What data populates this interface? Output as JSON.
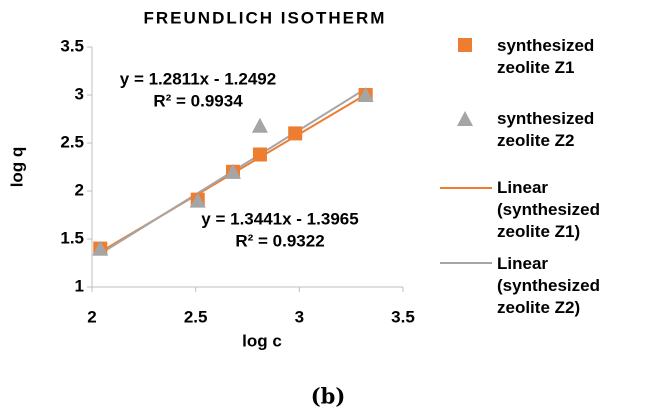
{
  "chart_data": {
    "type": "scatter",
    "title": "FREUNDLICH ISOTHERM",
    "x_label": "log c",
    "y_label": "log q",
    "xlim": [
      2,
      3.5
    ],
    "xticks": [
      2,
      2.5,
      3,
      3.5
    ],
    "ylim": [
      1,
      3.5
    ],
    "yticks": [
      1,
      1.5,
      2,
      2.5,
      3,
      3.5
    ],
    "series": [
      {
        "name": "synthesized zeolite Z1",
        "color": "#ED7D31",
        "marker": "square",
        "x": [
          2.04,
          2.51,
          2.68,
          2.81,
          2.98,
          3.32
        ],
        "values": [
          1.4,
          1.91,
          2.2,
          2.38,
          2.6,
          3.0
        ]
      },
      {
        "name": "synthesized zeolite Z2",
        "color": "#A5A5A5",
        "marker": "triangle",
        "x": [
          2.04,
          2.51,
          2.68,
          2.81,
          3.32
        ],
        "values": [
          1.4,
          1.9,
          2.2,
          2.68,
          3.0
        ]
      }
    ],
    "trendlines": [
      {
        "name": "Linear (synthesized zeolite Z1)",
        "series": 0,
        "color": "#ED7D31",
        "slope": 1.2811,
        "intercept": -1.2492,
        "equation": "y = 1.2811x - 1.2492",
        "r2": "R² = 0.9934"
      },
      {
        "name": "Linear (synthesized zeolite Z2)",
        "series": 1,
        "color": "#A5A5A5",
        "slope": 1.3441,
        "intercept": -1.3965,
        "equation": "y = 1.3441x - 1.3965",
        "r2": "R² = 0.9322"
      }
    ],
    "caption": "(b)"
  }
}
